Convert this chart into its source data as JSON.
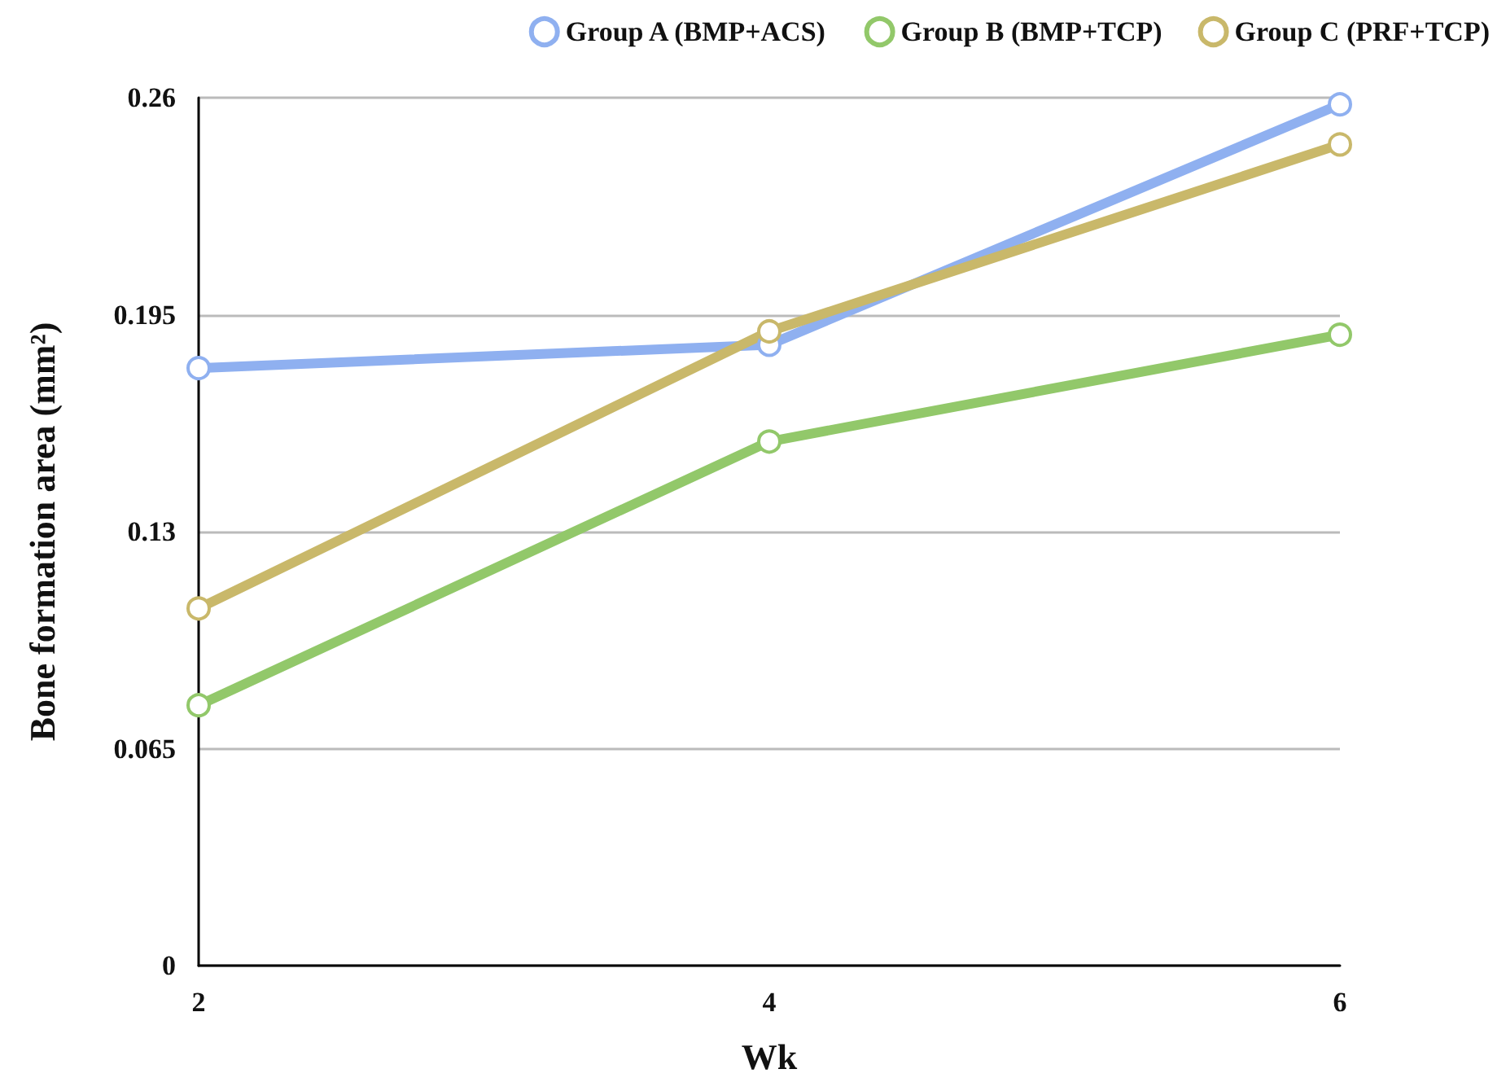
{
  "chart_data": {
    "type": "line",
    "xlabel": "Wk",
    "ylabel": "Bone formation area (mm²)",
    "categories": [
      "2",
      "4",
      "6"
    ],
    "series": [
      {
        "name": "Group A (BMP+ACS)",
        "color": "#8fb0f0",
        "values": [
          0.179,
          0.186,
          0.258
        ]
      },
      {
        "name": "Group B (BMP+TCP)",
        "color": "#92c86a",
        "values": [
          0.078,
          0.157,
          0.189
        ]
      },
      {
        "name": "Group C (PRF+TCP)",
        "color": "#c9b86a",
        "values": [
          0.107,
          0.19,
          0.246
        ]
      }
    ],
    "ylim": [
      0,
      0.26
    ],
    "yticks": [
      0,
      0.065,
      0.13,
      0.195,
      0.26
    ],
    "grid": "y",
    "legend": "top right",
    "marker": "circle",
    "line_style": "solid"
  }
}
